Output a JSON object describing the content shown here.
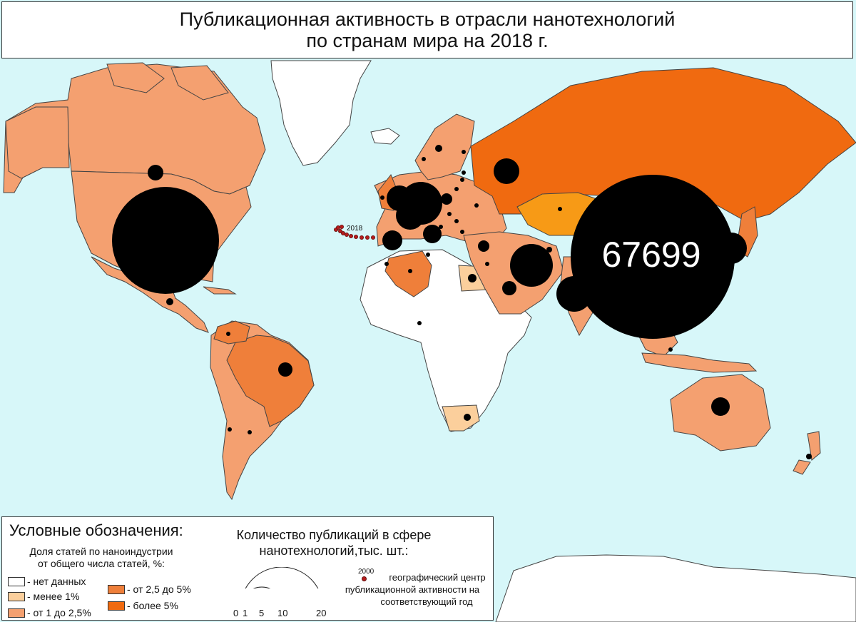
{
  "title": {
    "line1": "Публикационная активность в отрасли нанотехнологий",
    "line2": "по странам мира на 2018 г."
  },
  "colors": {
    "ocean": "#d7f7f9",
    "no_data": "#ffffff",
    "less_1": "#fbcf9c",
    "from_1_to_2_5": "#f4a070",
    "from_2_5_to_5": "#ef7f3a",
    "more_5": "#f06a10",
    "kazakhstan": "#f79a16",
    "bubble": "#000000",
    "geo_center": "#b61c1c"
  },
  "legend": {
    "title": "Условные обозначения:",
    "share_title_line1": "Доля статей по наноиндустрии",
    "share_title_line2": "от общего числа статей, %:",
    "classes": [
      {
        "label": "- нет данных",
        "color_key": "no_data"
      },
      {
        "label": "- менее 1%",
        "color_key": "less_1"
      },
      {
        "label": "- от 1 до 2,5%",
        "color_key": "from_1_to_2_5"
      },
      {
        "label": "- от 2,5 до 5%",
        "color_key": "from_2_5_to_5"
      },
      {
        "label": "- более 5%",
        "color_key": "more_5"
      }
    ],
    "count_title_line1": "Количество публикаций в сфере",
    "count_title_line2": "нанотехнологий,тыс. шт.:",
    "count_scale": [
      "0",
      "1",
      "5",
      "10",
      "20"
    ],
    "center_year": "2000",
    "center_label_line1": "географический центр",
    "center_label_line2": "публикационной активности на",
    "center_label_line3": "соответствующий год"
  },
  "map": {
    "china_value": "67699",
    "track_end_year": "2018",
    "bubbles": [
      {
        "country": "USA",
        "size": 20
      },
      {
        "country": "China",
        "size": 67.7
      },
      {
        "country": "Iran",
        "size": 5
      },
      {
        "country": "India",
        "size": 7
      },
      {
        "country": "Russia",
        "size": 2
      },
      {
        "country": "Germany",
        "size": 6
      },
      {
        "country": "UK",
        "size": 2.5
      },
      {
        "country": "France",
        "size": 3
      },
      {
        "country": "Spain",
        "size": 1.5
      },
      {
        "country": "Italy",
        "size": 2.5
      },
      {
        "country": "Korea/Japan",
        "size": 3
      },
      {
        "country": "Canada",
        "size": 0.8
      },
      {
        "country": "Brazil",
        "size": 0.7
      },
      {
        "country": "Australia",
        "size": 1
      },
      {
        "country": "Saudi Arabia",
        "size": 0.8
      },
      {
        "country": "Turkey",
        "size": 1
      }
    ]
  }
}
